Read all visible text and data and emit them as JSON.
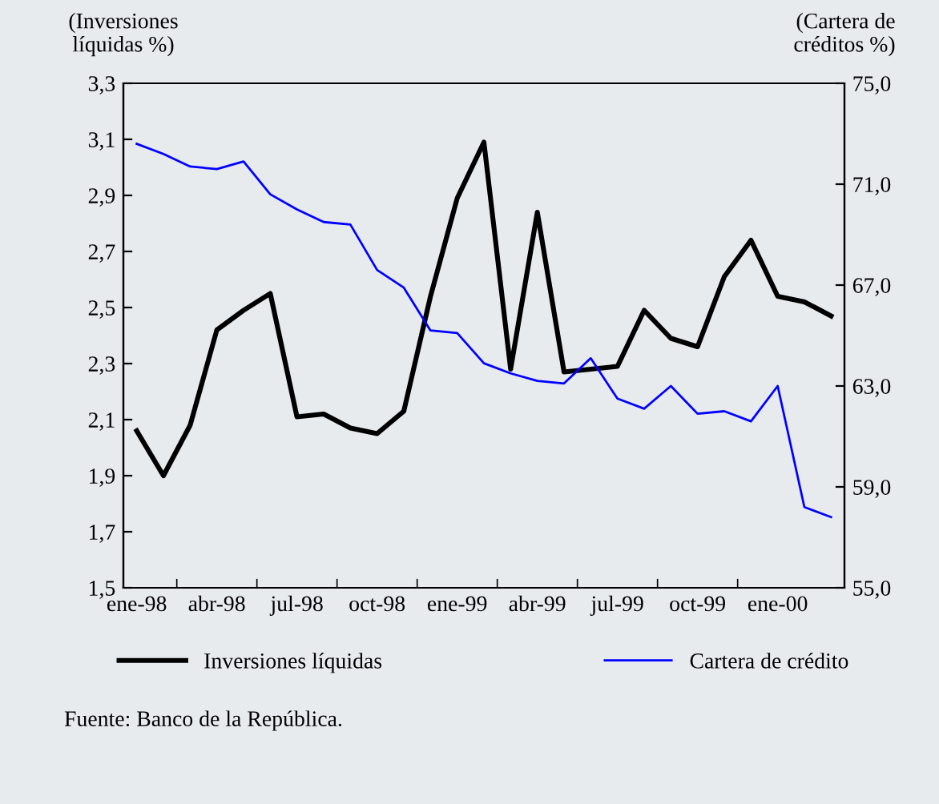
{
  "chart_data": {
    "type": "line",
    "ylabel": "(Inversiones\nlíquidas %)",
    "y2label": "(Cartera de\ncréditos %)",
    "categories": [
      "ene-98",
      null,
      null,
      "abr-98",
      null,
      null,
      "jul-98",
      null,
      null,
      "oct-98",
      null,
      null,
      "ene-99",
      null,
      null,
      "abr-99",
      null,
      null,
      "jul-99",
      null,
      null,
      "oct-99",
      null,
      null,
      "ene-00",
      null,
      null
    ],
    "series": [
      {
        "name": "Inversiones líquidas",
        "color": "#000000",
        "values": [
          2.06,
          1.9,
          2.08,
          2.42,
          2.49,
          2.55,
          2.11,
          2.12,
          2.07,
          2.05,
          2.13,
          2.54,
          2.89,
          3.09,
          2.28,
          2.84,
          2.27,
          2.28,
          2.29,
          2.49,
          2.39,
          2.36,
          2.61,
          2.74,
          2.54,
          2.52,
          2.47
        ]
      },
      {
        "name": "Cartera de crédito",
        "color": "#0000ff",
        "axis": "y2",
        "values": [
          72.6,
          72.2,
          71.7,
          71.6,
          71.9,
          70.6,
          70.0,
          69.5,
          69.4,
          67.6,
          66.9,
          65.2,
          65.1,
          63.9,
          63.5,
          63.2,
          63.1,
          64.1,
          62.5,
          62.1,
          63.0,
          61.9,
          62.0,
          61.6,
          63.0,
          58.2,
          57.8
        ]
      }
    ],
    "ylim": [
      1.5,
      3.3
    ],
    "yticks": [
      {
        "value": 1.5,
        "label": "1,5"
      },
      {
        "value": 1.7,
        "label": "1,7"
      },
      {
        "value": 1.9,
        "label": "1,9"
      },
      {
        "value": 2.1,
        "label": "2,1"
      },
      {
        "value": 2.3,
        "label": "2,3"
      },
      {
        "value": 2.5,
        "label": "2,5"
      },
      {
        "value": 2.7,
        "label": "2,7"
      },
      {
        "value": 2.9,
        "label": "2,9"
      },
      {
        "value": 3.1,
        "label": "3,1"
      },
      {
        "value": 3.3,
        "label": "3,3"
      }
    ],
    "y2lim": [
      55,
      75
    ],
    "y2ticks": [
      {
        "value": 55,
        "label": "55,0"
      },
      {
        "value": 59,
        "label": "59,0"
      },
      {
        "value": 63,
        "label": "63,0"
      },
      {
        "value": 67,
        "label": "67,0"
      },
      {
        "value": 71,
        "label": "71,0"
      },
      {
        "value": 75,
        "label": "75,0"
      }
    ],
    "legend": "bottom",
    "grid": false,
    "annotations": [
      "Fuente: Banco de la República."
    ]
  }
}
